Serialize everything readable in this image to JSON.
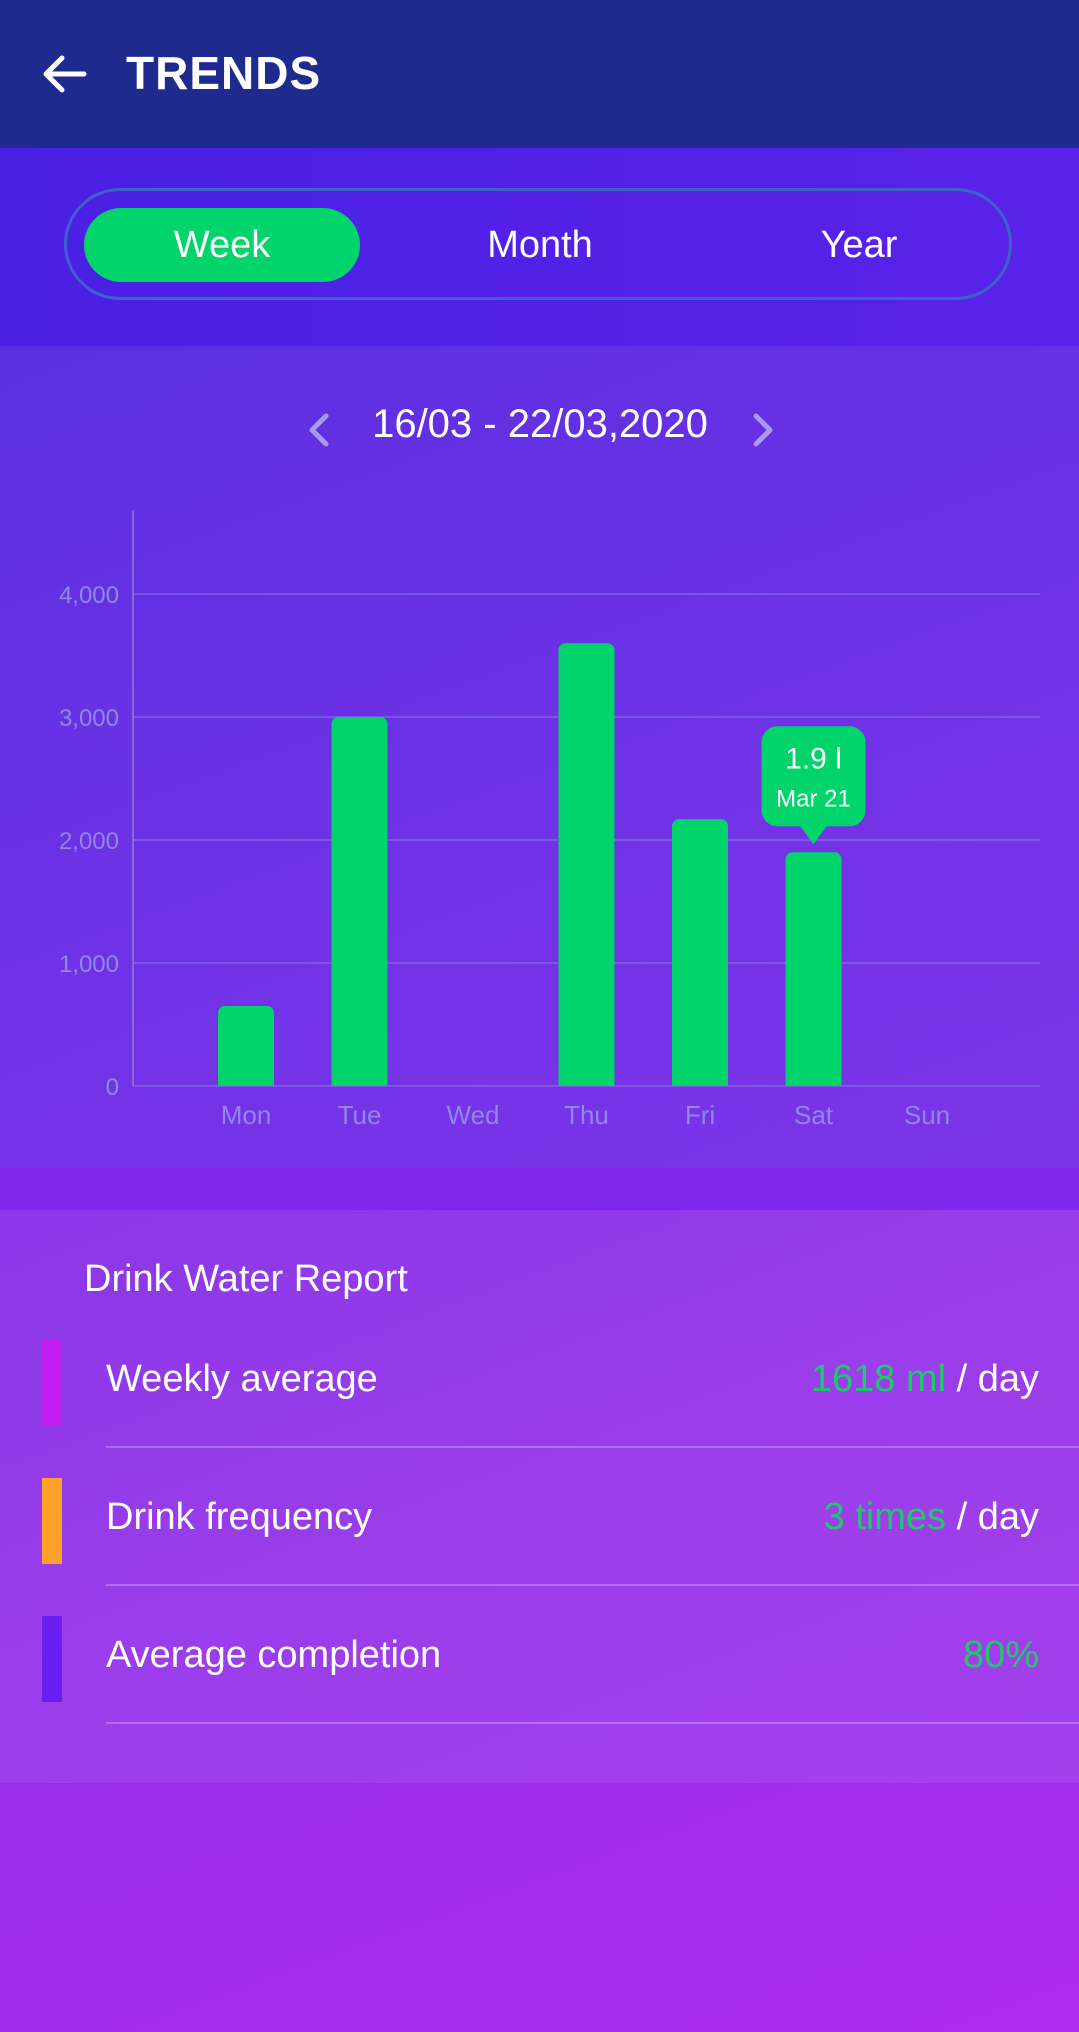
{
  "header": {
    "title": "TRENDS",
    "back_icon": "arrow-left-icon"
  },
  "period_tabs": [
    {
      "label": "Week",
      "active": true
    },
    {
      "label": "Month",
      "active": false
    },
    {
      "label": "Year",
      "active": false
    }
  ],
  "date_nav": {
    "range": "16/03 - 22/03,2020",
    "prev_icon": "chevron-left-icon",
    "next_icon": "chevron-right-icon"
  },
  "chart_data": {
    "type": "bar",
    "categories": [
      "Mon",
      "Tue",
      "Wed",
      "Thu",
      "Fri",
      "Sat",
      "Sun"
    ],
    "values": [
      650,
      3000,
      0,
      3600,
      2170,
      1900,
      0
    ],
    "y_ticks": [
      "0",
      "1,000",
      "2,000",
      "3,000",
      "4,000"
    ],
    "ylim": [
      0,
      4000
    ],
    "grid": true,
    "tooltip": {
      "category": "Sat",
      "value_label": "1.9 l",
      "date_label": "Mar 21"
    },
    "colors": {
      "bar": "#00d46a",
      "grid": "#8e79e0",
      "axis_text": "#8f88e8"
    }
  },
  "report": {
    "title": "Drink Water Report",
    "rows": [
      {
        "label": "Weekly average",
        "value": "1618 ml",
        "suffix": " / day",
        "marker_color": "#c21ef2"
      },
      {
        "label": "Drink frequency",
        "value": "3 times",
        "suffix": " / day",
        "marker_color": "#ffa22b"
      },
      {
        "label": "Average completion",
        "value": "80%",
        "suffix": "",
        "marker_color": "#6a1df0"
      }
    ]
  },
  "colors": {
    "accent": "#00d46a",
    "header_bg": "#1f2a8f"
  }
}
